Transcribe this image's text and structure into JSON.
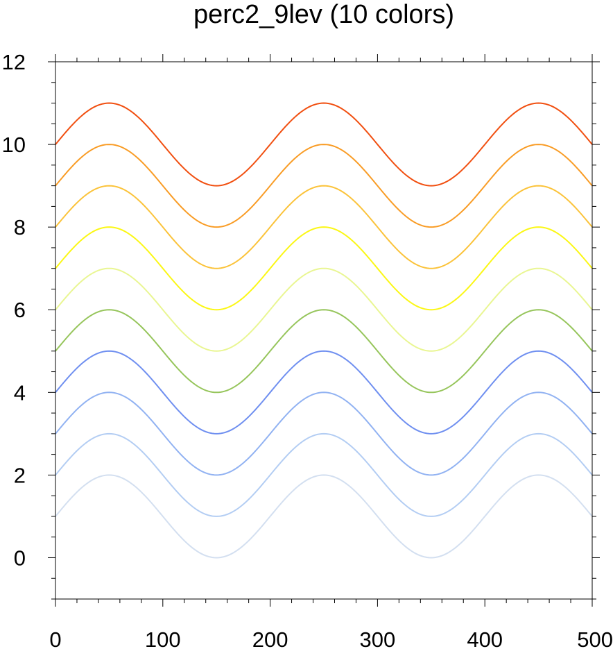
{
  "chart_data": {
    "type": "line",
    "title": "perc2_9lev (10 colors)",
    "xlabel": "",
    "ylabel": "",
    "xlim": [
      0,
      500
    ],
    "ylim": [
      -1,
      12
    ],
    "xticks": [
      0,
      100,
      200,
      300,
      400,
      500
    ],
    "yticks": [
      0,
      2,
      4,
      6,
      8,
      10,
      12
    ],
    "x_minor_step": 20,
    "y_minor_step": 0.5,
    "grid": false,
    "legend": "none",
    "curve": {
      "function": "offset + sin(2*pi*x/200)",
      "amplitude": 1,
      "period": 200,
      "x_start": 0,
      "x_end": 500,
      "x_step": 2
    },
    "series": [
      {
        "offset": 1,
        "color": "#d3dff0"
      },
      {
        "offset": 2,
        "color": "#b3cdf3"
      },
      {
        "offset": 3,
        "color": "#91b2f2"
      },
      {
        "offset": 4,
        "color": "#6f8ff0"
      },
      {
        "offset": 5,
        "color": "#96c55b"
      },
      {
        "offset": 6,
        "color": "#e9f692"
      },
      {
        "offset": 7,
        "color": "#fbf715"
      },
      {
        "offset": 8,
        "color": "#fbc33a"
      },
      {
        "offset": 9,
        "color": "#f99c25"
      },
      {
        "offset": 10,
        "color": "#f14f10"
      }
    ]
  }
}
